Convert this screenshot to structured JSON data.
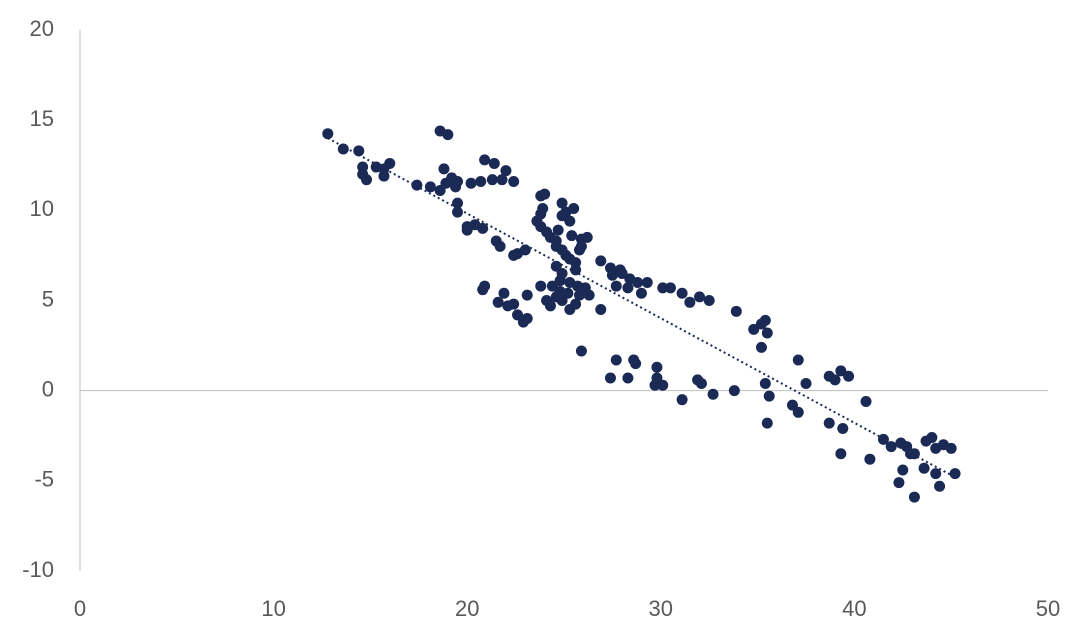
{
  "chart_data": {
    "type": "scatter",
    "color": "#1b2a55",
    "xlim": [
      0,
      50
    ],
    "ylim": [
      -10,
      20
    ],
    "xticks": [
      0,
      10,
      20,
      30,
      40,
      50
    ],
    "yticks": [
      -10,
      -5,
      0,
      5,
      10,
      15,
      20
    ],
    "x": [
      12.8,
      13.6,
      14.4,
      14.6,
      14.6,
      14.8,
      15.3,
      15.7,
      15.7,
      16.0,
      17.4,
      18.1,
      18.6,
      19.0,
      18.8,
      18.6,
      18.9,
      19.2,
      19.5,
      19.4,
      19.5,
      19.5,
      20.0,
      20.0,
      20.4,
      20.8,
      20.2,
      20.7,
      20.9,
      21.4,
      21.3,
      21.8,
      22.0,
      22.4,
      21.5,
      21.7,
      22.4,
      22.6,
      23.0,
      20.9,
      20.8,
      21.6,
      21.9,
      22.1,
      22.4,
      22.6,
      22.9,
      23.1,
      23.1,
      23.6,
      23.8,
      24.0,
      23.9,
      23.8,
      23.8,
      24.1,
      24.3,
      24.6,
      24.7,
      24.9,
      24.9,
      25.1,
      25.3,
      25.5,
      24.6,
      24.9,
      25.1,
      25.3,
      25.6,
      25.8,
      25.9,
      26.2,
      25.9,
      25.4,
      24.6,
      24.8,
      24.9,
      25.6,
      24.8,
      23.8,
      24.1,
      24.3,
      24.6,
      24.9,
      25.2,
      25.3,
      25.6,
      25.8,
      26.1,
      26.3,
      25.7,
      24.4,
      25.3,
      26.9,
      26.9,
      27.4,
      27.5,
      27.9,
      27.7,
      28.0,
      28.4,
      28.3,
      28.8,
      29.0,
      29.3,
      30.1,
      30.5,
      31.1,
      31.5,
      32.0,
      32.5,
      33.9,
      34.8,
      35.2,
      35.4,
      35.5,
      35.2,
      25.9,
      27.4,
      27.7,
      28.3,
      28.6,
      28.7,
      29.8,
      29.8,
      29.7,
      30.1,
      31.1,
      31.9,
      32.1,
      32.7,
      33.8,
      35.4,
      35.6,
      35.5,
      36.8,
      37.1,
      37.1,
      37.5,
      38.7,
      39.0,
      39.3,
      39.7,
      38.7,
      39.4,
      39.3,
      40.6,
      40.8,
      41.5,
      41.9,
      42.4,
      42.7,
      42.9,
      43.1,
      42.5,
      42.3,
      43.1,
      43.7,
      44.0,
      44.2,
      44.6,
      45.0,
      43.6,
      44.2,
      44.4,
      45.2
    ],
    "values": [
      14.25,
      13.4,
      13.3,
      12.4,
      12.0,
      11.7,
      12.4,
      11.9,
      12.3,
      12.6,
      11.4,
      11.3,
      14.4,
      14.2,
      12.3,
      11.1,
      11.5,
      11.8,
      11.6,
      11.3,
      10.4,
      9.9,
      9.1,
      8.9,
      9.2,
      9.0,
      11.5,
      11.6,
      12.8,
      12.6,
      11.7,
      11.7,
      12.2,
      11.6,
      8.3,
      8.0,
      7.5,
      7.6,
      7.8,
      5.8,
      5.6,
      4.9,
      5.4,
      4.7,
      4.8,
      4.2,
      3.8,
      4.0,
      5.3,
      9.4,
      10.8,
      10.9,
      10.1,
      9.8,
      9.1,
      8.8,
      8.5,
      8.3,
      8.9,
      9.7,
      10.4,
      9.9,
      9.4,
      10.1,
      8.0,
      7.8,
      7.5,
      7.3,
      7.1,
      7.8,
      8.4,
      8.5,
      8.0,
      8.6,
      6.9,
      6.1,
      6.5,
      6.7,
      5.5,
      5.8,
      5.0,
      4.7,
      5.2,
      5.0,
      5.4,
      4.5,
      4.8,
      5.3,
      5.7,
      5.3,
      5.8,
      5.8,
      6.0,
      4.5,
      7.2,
      6.8,
      6.4,
      6.7,
      5.8,
      6.5,
      6.2,
      5.7,
      6.0,
      5.4,
      6.0,
      5.7,
      5.7,
      5.4,
      4.9,
      5.2,
      5.0,
      4.4,
      3.4,
      3.7,
      3.9,
      3.2,
      2.4,
      2.2,
      0.7,
      1.7,
      0.7,
      1.7,
      1.5,
      1.3,
      0.7,
      0.3,
      0.3,
      -0.5,
      0.6,
      0.4,
      -0.2,
      0,
      0.4,
      -0.3,
      -1.8,
      -0.8,
      -1.2,
      1.7,
      0.4,
      0.8,
      0.6,
      1.1,
      0.8,
      -1.8,
      -2.1,
      -3.5,
      -0.6,
      -3.8,
      -2.7,
      -3.1,
      -2.9,
      -3.1,
      -3.5,
      -3.5,
      -4.4,
      -5.1,
      -5.9,
      -2.8,
      -2.6,
      -3.2,
      -3.0,
      -3.2,
      -4.3,
      -4.6,
      -5.3,
      -4.6
    ],
    "trendline": {
      "x": [
        12.8,
        45.2
      ],
      "values": [
        14.0,
        -4.8
      ]
    }
  }
}
